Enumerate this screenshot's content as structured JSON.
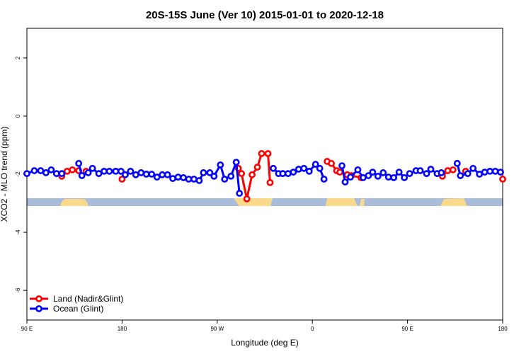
{
  "chart_data": {
    "type": "line",
    "title": "20S-15S June (Ver 10)   2015-01-01 to 2020-12-18",
    "x_label": "Longitude (deg E)",
    "y_label": "XCO2 - MLO trend (ppm)",
    "xlim": [
      90,
      540
    ],
    "ylim": [
      -7.02,
      3.02
    ],
    "xticks": [
      {
        "value": 90,
        "label": "90 E"
      },
      {
        "value": 180,
        "label": "180"
      },
      {
        "value": 270,
        "label": "90 W"
      },
      {
        "value": 360,
        "label": "0"
      },
      {
        "value": 450,
        "label": "90 E"
      },
      {
        "value": 540,
        "label": "180"
      }
    ],
    "yticks": [
      -6,
      -4,
      -2,
      0,
      2
    ],
    "legend": "bottom-left",
    "series": [
      {
        "name": "Land (Nadir&Glint)",
        "color": "#ff0000",
        "x": [
          123,
          128,
          133,
          139,
          141,
          146,
          160,
          180,
          200,
          290,
          293,
          298,
          303,
          308,
          312,
          318,
          320,
          350,
          374,
          378,
          383,
          386,
          393,
          397,
          406,
          450,
          483,
          488,
          493,
          499,
          505,
          520,
          540
        ],
        "values": [
          -2.07,
          -1.9,
          -1.85,
          -1.88,
          null,
          -1.9,
          null,
          -2.17,
          null,
          -1.8,
          -1.98,
          -2.85,
          -2.02,
          -1.76,
          -1.29,
          -1.29,
          -2.29,
          null,
          -1.56,
          -1.63,
          -1.88,
          -1.93,
          -2.02,
          -2.05,
          -2.12,
          null,
          -2.07,
          -1.88,
          -1.85,
          null,
          -1.9,
          null,
          -2.17
        ]
      },
      {
        "name": "Ocean (Glint)",
        "color": "#0000ff",
        "x": [
          90,
          97,
          103,
          108,
          113,
          118,
          123,
          130,
          139,
          142,
          148,
          152,
          158,
          163,
          168,
          174,
          179,
          183,
          188,
          193,
          198,
          203,
          208,
          213,
          218,
          223,
          228,
          233,
          238,
          243,
          248,
          253,
          257,
          263,
          267,
          273,
          277,
          283,
          288,
          291,
          300,
          323,
          328,
          332,
          337,
          342,
          347,
          352,
          357,
          363,
          367,
          371,
          380,
          388,
          391,
          396,
          403,
          408,
          413,
          417,
          422,
          427,
          432,
          437,
          442,
          447,
          452,
          458,
          462,
          468,
          472,
          478,
          482,
          490,
          497,
          500,
          507,
          512,
          518,
          523,
          528,
          533,
          538
        ],
        "values": [
          -1.98,
          -1.88,
          -1.88,
          -1.95,
          -1.85,
          -1.98,
          -1.98,
          null,
          -1.63,
          -2.05,
          -1.95,
          -1.8,
          -1.98,
          -1.9,
          -1.9,
          -1.9,
          -1.9,
          -2.02,
          -1.9,
          -2.02,
          -1.95,
          -2.0,
          -2.0,
          -2.1,
          -2.02,
          -2.02,
          -2.15,
          -2.1,
          -2.12,
          -2.17,
          -2.17,
          -2.22,
          -1.95,
          -1.95,
          -2.07,
          -1.68,
          -2.17,
          -2.07,
          -1.59,
          -2.66,
          null,
          -1.8,
          -1.98,
          -1.98,
          -1.98,
          -1.93,
          -1.83,
          -1.8,
          -1.9,
          -1.66,
          -1.8,
          -2.17,
          null,
          -1.71,
          -2.27,
          -2.1,
          -1.85,
          -2.12,
          -2.05,
          -1.93,
          -2.07,
          -1.95,
          -2.1,
          -2.12,
          -1.93,
          -2.12,
          -1.98,
          -1.88,
          -1.88,
          -1.98,
          -1.83,
          -1.98,
          -1.95,
          null,
          -1.63,
          -2.05,
          -1.98,
          -1.8,
          -2.0,
          -1.93,
          -1.9,
          -1.9,
          -1.93
        ]
      }
    ]
  }
}
